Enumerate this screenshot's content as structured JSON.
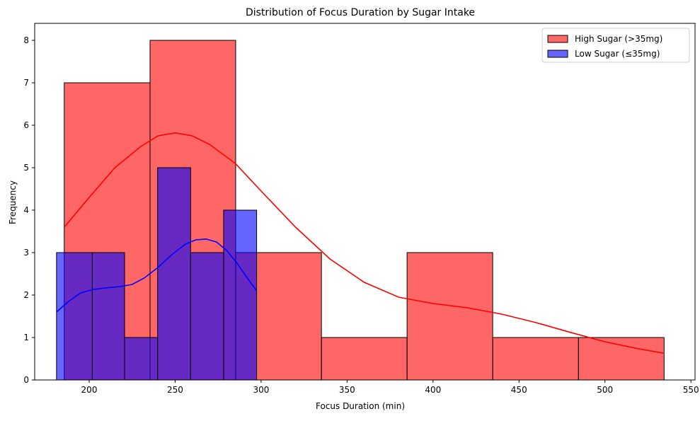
{
  "chart_data": {
    "type": "histogram",
    "title": "Distribution of Focus Duration by Sugar Intake",
    "xlabel": "Focus Duration (min)",
    "ylabel": "Frequency",
    "xlim": [
      168.3,
      552.4
    ],
    "ylim": [
      0,
      8.4
    ],
    "x_ticks": [
      200,
      250,
      300,
      350,
      400,
      450,
      500,
      550
    ],
    "y_ticks": [
      0,
      1,
      2,
      3,
      4,
      5,
      6,
      7,
      8
    ],
    "grid": false,
    "legend_position": "top-right",
    "series": [
      {
        "name": "High Sugar (>35mg)",
        "color": "#ff0000",
        "bin_edges": [
          185.5,
          235.4,
          285.2,
          335.1,
          384.9,
          434.7,
          484.6,
          534.4
        ],
        "counts": [
          7,
          8,
          3,
          1,
          3,
          1,
          1
        ],
        "kde": {
          "x": [
            185.5,
            200,
            215,
            230,
            240,
            250,
            260,
            270,
            285,
            300,
            320,
            340,
            360,
            380,
            400,
            420,
            440,
            460,
            480,
            500,
            520,
            534.4
          ],
          "y": [
            3.6,
            4.3,
            5.0,
            5.5,
            5.75,
            5.82,
            5.75,
            5.55,
            5.1,
            4.45,
            3.6,
            2.85,
            2.3,
            1.95,
            1.8,
            1.7,
            1.55,
            1.35,
            1.12,
            0.9,
            0.73,
            0.63
          ]
        }
      },
      {
        "name": "Low Sugar (≤35mg)",
        "color": "#0000ff",
        "bin_edges": [
          181.0,
          201.8,
          220.6,
          239.8,
          259.0,
          278.2,
          297.4
        ],
        "counts": [
          3,
          3,
          1,
          5,
          3,
          4
        ],
        "kde": {
          "x": [
            181.0,
            188,
            195,
            202,
            210,
            218,
            225,
            232,
            240,
            248,
            256,
            262,
            268,
            274,
            280,
            286,
            292,
            297.4
          ],
          "y": [
            1.6,
            1.85,
            2.05,
            2.13,
            2.17,
            2.2,
            2.25,
            2.4,
            2.65,
            2.95,
            3.2,
            3.3,
            3.32,
            3.25,
            3.05,
            2.75,
            2.4,
            2.1
          ]
        }
      }
    ]
  }
}
